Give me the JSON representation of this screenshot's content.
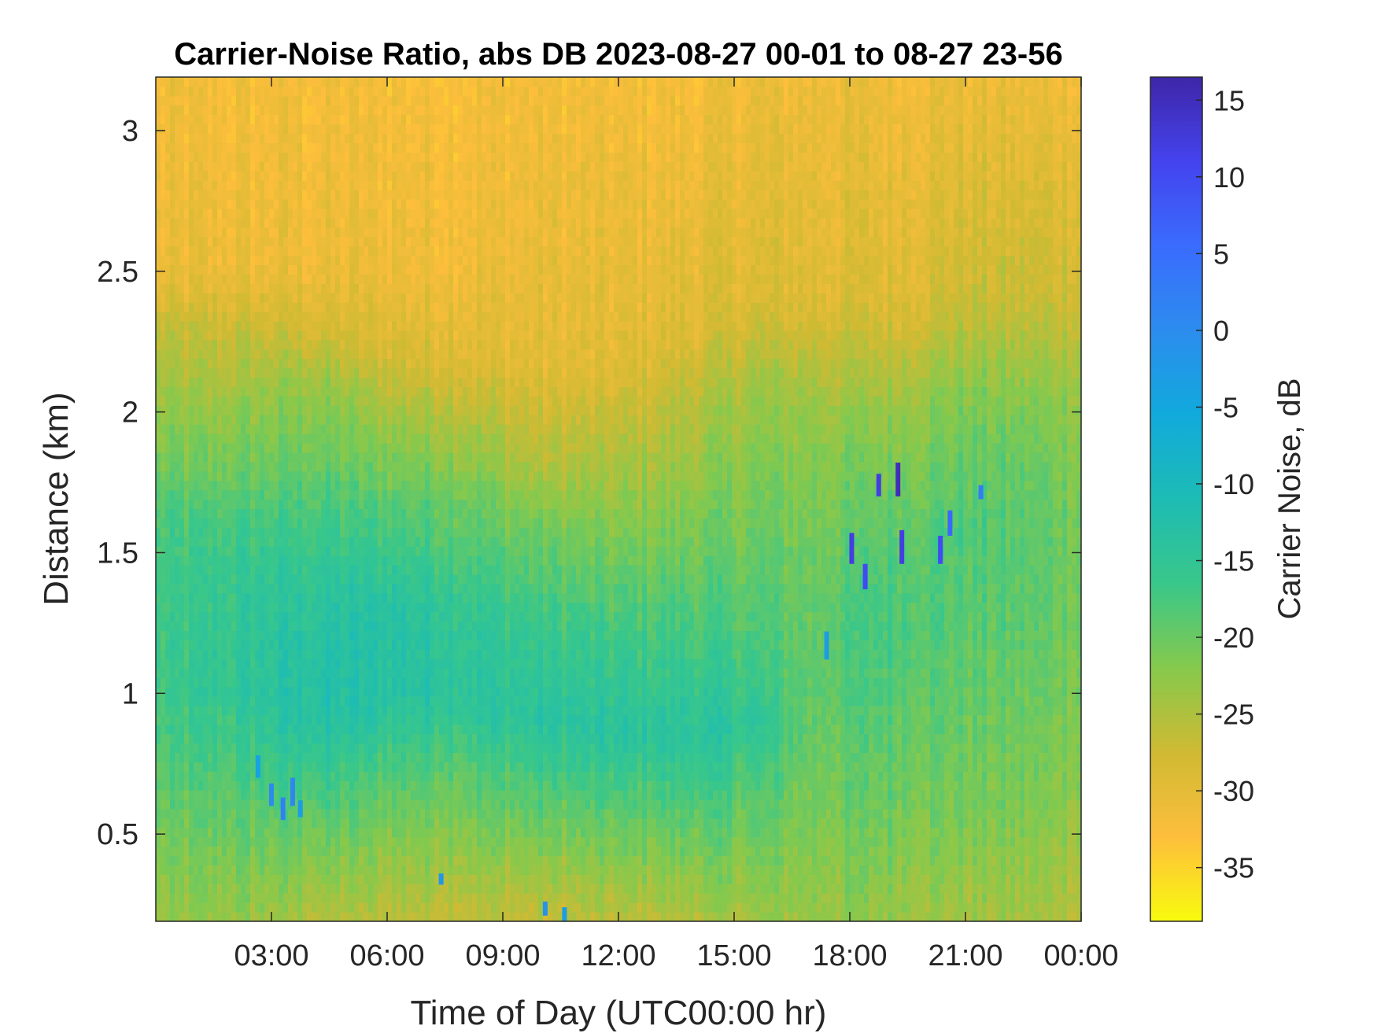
{
  "chart_data": {
    "type": "heatmap",
    "title": "Carrier-Noise Ratio, abs DB 2023-08-27 00-01 to 08-27 23-56",
    "xlabel": "Time of Day (UTC00:00 hr)",
    "ylabel": "Distance (km)",
    "colorbar_label": "Carrier Noise, dB",
    "xlim_hours": [
      0,
      24
    ],
    "xtick_values_hours": [
      3,
      6,
      9,
      12,
      15,
      18,
      21,
      24
    ],
    "xtick_labels": [
      "03:00",
      "06:00",
      "09:00",
      "12:00",
      "15:00",
      "18:00",
      "21:00",
      "00:00"
    ],
    "ylim": [
      0.19,
      3.19
    ],
    "ytick_values": [
      0.5,
      1,
      1.5,
      2,
      2.5,
      3
    ],
    "ytick_labels": [
      "0.5",
      "1",
      "1.5",
      "2",
      "2.5",
      "3"
    ],
    "clim": [
      -38.5,
      16.5
    ],
    "colorbar_ticks": [
      15,
      10,
      5,
      0,
      -5,
      -10,
      -15,
      -20,
      -25,
      -30,
      -35
    ],
    "colorbar_tick_labels": [
      "15",
      "10",
      "5",
      "0",
      "-5",
      "-10",
      "-15",
      "-20",
      "-25",
      "-30",
      "-35"
    ],
    "colormap": "parula (reversed)",
    "colormap_stops": [
      {
        "value": 16.5,
        "color": "#3E26A8"
      },
      {
        "value": 11.0,
        "color": "#4443EE"
      },
      {
        "value": 5.5,
        "color": "#3A6CFD"
      },
      {
        "value": 0.0,
        "color": "#2C8CEE"
      },
      {
        "value": -5.5,
        "color": "#11AADC"
      },
      {
        "value": -11.0,
        "color": "#1DBCB4"
      },
      {
        "value": -16.5,
        "color": "#39C78A"
      },
      {
        "value": -22.0,
        "color": "#86C94C"
      },
      {
        "value": -27.5,
        "color": "#D0BA33"
      },
      {
        "value": -33.0,
        "color": "#FDBE3C"
      },
      {
        "value": -38.5,
        "color": "#F9FB0E"
      }
    ],
    "field_description_rows": [
      {
        "time_hours": 0.0,
        "profile": [
          [
            0.19,
            -24
          ],
          [
            0.4,
            -22
          ],
          [
            1.0,
            -17
          ],
          [
            1.6,
            -18
          ],
          [
            1.9,
            -22
          ],
          [
            2.3,
            -27
          ],
          [
            2.5,
            -31
          ],
          [
            3.19,
            -32
          ]
        ]
      },
      {
        "time_hours": 2.0,
        "profile": [
          [
            0.19,
            -23
          ],
          [
            0.5,
            -20
          ],
          [
            1.0,
            -15
          ],
          [
            1.5,
            -16
          ],
          [
            1.85,
            -21
          ],
          [
            2.3,
            -27
          ],
          [
            2.5,
            -31
          ],
          [
            3.19,
            -32
          ]
        ]
      },
      {
        "time_hours": 4.0,
        "profile": [
          [
            0.19,
            -25
          ],
          [
            0.5,
            -20
          ],
          [
            0.9,
            -13
          ],
          [
            1.2,
            -13
          ],
          [
            1.6,
            -17
          ],
          [
            2.1,
            -23
          ],
          [
            2.3,
            -28
          ],
          [
            2.5,
            -31
          ],
          [
            3.19,
            -32
          ]
        ]
      },
      {
        "time_hours": 6.0,
        "profile": [
          [
            0.19,
            -26
          ],
          [
            0.6,
            -20
          ],
          [
            1.0,
            -13
          ],
          [
            1.3,
            -13
          ],
          [
            1.7,
            -19
          ],
          [
            2.0,
            -24
          ],
          [
            2.2,
            -28
          ],
          [
            2.5,
            -31
          ],
          [
            3.19,
            -32
          ]
        ]
      },
      {
        "time_hours": 8.0,
        "profile": [
          [
            0.19,
            -26
          ],
          [
            0.6,
            -20
          ],
          [
            1.0,
            -14
          ],
          [
            1.3,
            -15
          ],
          [
            1.7,
            -20
          ],
          [
            2.0,
            -25
          ],
          [
            2.2,
            -29
          ],
          [
            2.5,
            -31
          ],
          [
            3.19,
            -32
          ]
        ]
      },
      {
        "time_hours": 10.0,
        "profile": [
          [
            0.19,
            -27
          ],
          [
            0.55,
            -20
          ],
          [
            0.9,
            -14
          ],
          [
            1.2,
            -16
          ],
          [
            1.6,
            -21
          ],
          [
            1.85,
            -26
          ],
          [
            2.2,
            -30
          ],
          [
            3.19,
            -32
          ]
        ]
      },
      {
        "time_hours": 12.0,
        "profile": [
          [
            0.19,
            -26
          ],
          [
            0.55,
            -20
          ],
          [
            0.85,
            -14
          ],
          [
            1.2,
            -17
          ],
          [
            1.6,
            -22
          ],
          [
            1.9,
            -26
          ],
          [
            2.2,
            -30
          ],
          [
            3.19,
            -32
          ]
        ]
      },
      {
        "time_hours": 14.0,
        "profile": [
          [
            0.19,
            -25
          ],
          [
            0.55,
            -19
          ],
          [
            0.85,
            -14
          ],
          [
            1.2,
            -17
          ],
          [
            1.6,
            -21
          ],
          [
            2.0,
            -25
          ],
          [
            2.3,
            -29
          ],
          [
            3.19,
            -32
          ]
        ]
      },
      {
        "time_hours": 15.5,
        "profile": [
          [
            0.19,
            -24
          ],
          [
            0.6,
            -19
          ],
          [
            0.9,
            -15
          ],
          [
            1.2,
            -18
          ],
          [
            1.7,
            -21
          ],
          [
            2.1,
            -24
          ],
          [
            2.4,
            -29
          ],
          [
            3.19,
            -31
          ]
        ]
      },
      {
        "time_hours": 17.0,
        "profile": [
          [
            0.19,
            -23
          ],
          [
            0.6,
            -21
          ],
          [
            1.0,
            -19
          ],
          [
            1.5,
            -20
          ],
          [
            2.0,
            -23
          ],
          [
            2.4,
            -29
          ],
          [
            3.19,
            -31
          ]
        ]
      },
      {
        "time_hours": 19.0,
        "profile": [
          [
            0.19,
            -23
          ],
          [
            0.6,
            -20
          ],
          [
            1.2,
            -17
          ],
          [
            1.5,
            -18
          ],
          [
            2.0,
            -23
          ],
          [
            2.4,
            -29
          ],
          [
            3.19,
            -31
          ]
        ]
      },
      {
        "time_hours": 21.0,
        "profile": [
          [
            0.19,
            -24
          ],
          [
            0.6,
            -21
          ],
          [
            1.2,
            -19
          ],
          [
            1.6,
            -18
          ],
          [
            2.0,
            -21
          ],
          [
            2.4,
            -27
          ],
          [
            3.19,
            -31
          ]
        ]
      },
      {
        "time_hours": 24.0,
        "profile": [
          [
            0.19,
            -25
          ],
          [
            0.6,
            -22
          ],
          [
            1.2,
            -20
          ],
          [
            1.6,
            -20
          ],
          [
            2.0,
            -22
          ],
          [
            2.4,
            -27
          ],
          [
            3.19,
            -31
          ]
        ]
      }
    ],
    "spikes": [
      {
        "time_hours": 2.65,
        "distance_km": [
          0.7,
          0.78
        ],
        "value": -4
      },
      {
        "time_hours": 3.0,
        "distance_km": [
          0.6,
          0.68
        ],
        "value": 0
      },
      {
        "time_hours": 3.3,
        "distance_km": [
          0.55,
          0.63
        ],
        "value": 2
      },
      {
        "time_hours": 3.55,
        "distance_km": [
          0.6,
          0.7
        ],
        "value": 1
      },
      {
        "time_hours": 3.75,
        "distance_km": [
          0.56,
          0.62
        ],
        "value": -3
      },
      {
        "time_hours": 7.4,
        "distance_km": [
          0.32,
          0.36
        ],
        "value": -2
      },
      {
        "time_hours": 10.1,
        "distance_km": [
          0.21,
          0.26
        ],
        "value": -1
      },
      {
        "time_hours": 10.6,
        "distance_km": [
          0.19,
          0.24
        ],
        "value": -3
      },
      {
        "time_hours": 17.4,
        "distance_km": [
          1.12,
          1.22
        ],
        "value": -3
      },
      {
        "time_hours": 18.05,
        "distance_km": [
          1.46,
          1.57
        ],
        "value": 12
      },
      {
        "time_hours": 18.4,
        "distance_km": [
          1.37,
          1.46
        ],
        "value": 10
      },
      {
        "time_hours": 18.75,
        "distance_km": [
          1.7,
          1.78
        ],
        "value": 12
      },
      {
        "time_hours": 19.25,
        "distance_km": [
          1.7,
          1.82
        ],
        "value": 15
      },
      {
        "time_hours": 19.35,
        "distance_km": [
          1.46,
          1.58
        ],
        "value": 12
      },
      {
        "time_hours": 20.35,
        "distance_km": [
          1.46,
          1.56
        ],
        "value": 10
      },
      {
        "time_hours": 20.6,
        "distance_km": [
          1.56,
          1.65
        ],
        "value": 6
      },
      {
        "time_hours": 21.4,
        "distance_km": [
          1.69,
          1.74
        ],
        "value": 3
      }
    ]
  }
}
